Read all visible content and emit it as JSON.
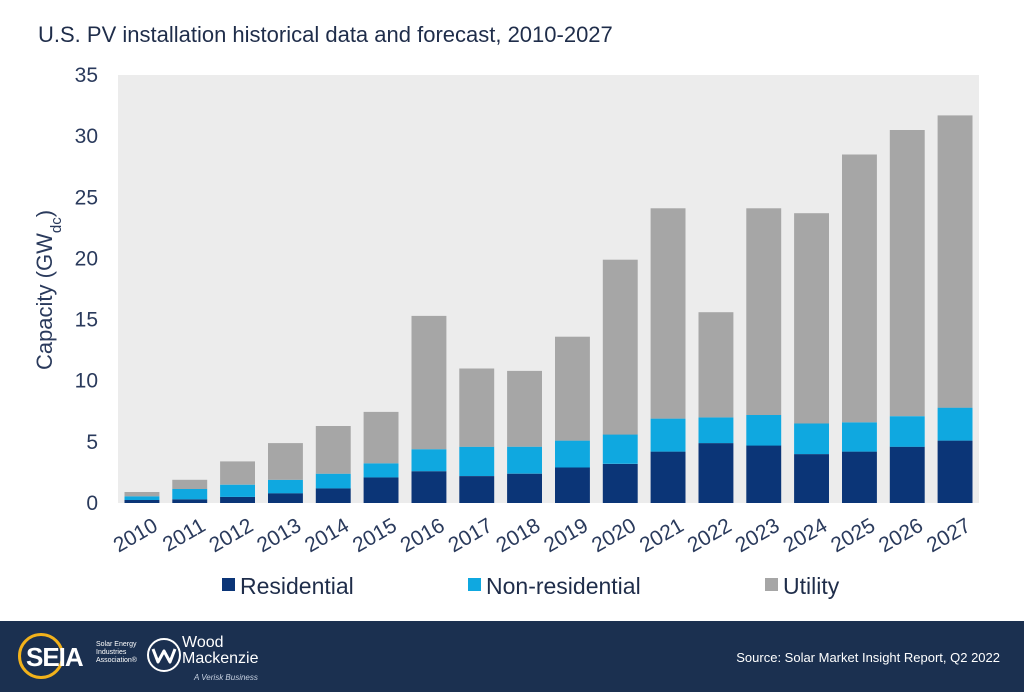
{
  "title": "U.S. PV installation historical data and forecast, 2010-2027",
  "chart_data": {
    "type": "bar",
    "stacked": true,
    "title": "U.S. PV installation historical data and forecast, 2010-2027",
    "xlabel": "",
    "ylabel": "Capacity (GW",
    "ylabel_subscript": "dc",
    "ylabel_close": ")",
    "ylim": [
      0,
      35
    ],
    "yticks": [
      0,
      5,
      10,
      15,
      20,
      25,
      30,
      35
    ],
    "grid": false,
    "legend_position": "bottom",
    "categories": [
      "2010",
      "2011",
      "2012",
      "2013",
      "2014",
      "2015",
      "2016",
      "2017",
      "2018",
      "2019",
      "2020",
      "2021",
      "2022",
      "2023",
      "2024",
      "2025",
      "2026",
      "2027"
    ],
    "series": [
      {
        "name": "Residential",
        "color": "#0b3577",
        "values": [
          0.25,
          0.3,
          0.5,
          0.8,
          1.2,
          2.1,
          2.6,
          2.2,
          2.4,
          2.9,
          3.2,
          4.2,
          4.9,
          4.7,
          4.0,
          4.2,
          4.6,
          5.1
        ]
      },
      {
        "name": "Non-residential",
        "color": "#0fa8e0",
        "values": [
          0.3,
          0.85,
          1.0,
          1.1,
          1.2,
          1.15,
          1.8,
          2.4,
          2.2,
          2.2,
          2.4,
          2.7,
          2.1,
          2.5,
          2.5,
          2.4,
          2.5,
          2.7
        ]
      },
      {
        "name": "Utility",
        "color": "#a6a6a6",
        "values": [
          0.35,
          0.75,
          1.9,
          3.0,
          3.9,
          4.2,
          10.9,
          6.4,
          6.2,
          8.5,
          14.3,
          17.2,
          8.6,
          16.9,
          17.2,
          21.9,
          23.4,
          23.9
        ]
      }
    ]
  },
  "footer": {
    "seia_logo_text": "SEIA",
    "seia_subtext": "Solar Energy Industries Association®",
    "wm_logo_line1": "Wood",
    "wm_logo_line2": "Mackenzie",
    "wm_subtext": "A Verisk Business",
    "source": "Source: Solar Market Insight Report, Q2 2022",
    "background": "#1b3050",
    "seia_accent": "#f2b21b"
  }
}
